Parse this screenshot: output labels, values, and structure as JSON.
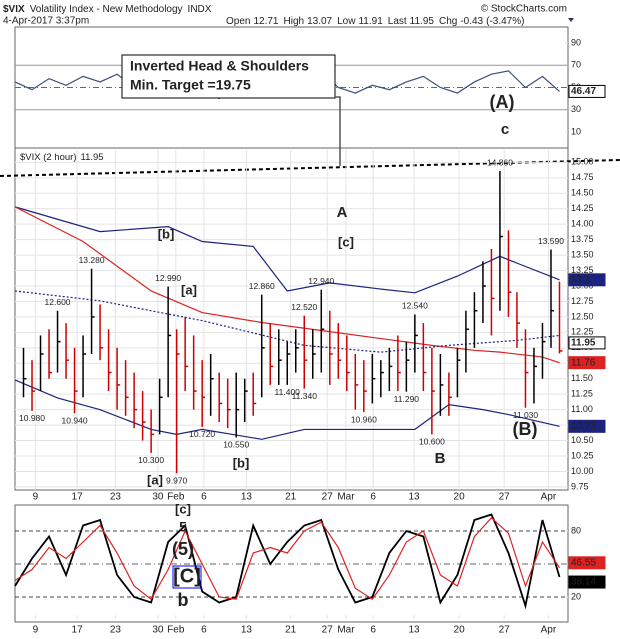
{
  "header": {
    "symbol": "$VIX",
    "name": "Volatility Index - New Methodology",
    "exchange": "INDX",
    "credit": "© StockCharts.com",
    "date": "4-Apr-2017 3:37pm",
    "quote": [
      {
        "label": "Open",
        "value": 12.71
      },
      {
        "label": "High",
        "value": 13.07
      },
      {
        "label": "Low",
        "value": 11.91
      },
      {
        "label": "Last",
        "value": 11.95
      },
      {
        "label": "Chg",
        "value": -0.43
      }
    ],
    "change_pct": -3.47,
    "change_pct_label": "(-3.47%)"
  },
  "annotations": {
    "callout": [
      "Inverted Head & Shoulders",
      "Min. Target =19.75"
    ],
    "wave_labels": [
      {
        "text": "(A)",
        "color": "#000000"
      },
      {
        "text": "c",
        "color": "#9900cc"
      },
      {
        "text": "A",
        "color": "#9900cc"
      },
      {
        "text": "[c]",
        "color": "#990000"
      },
      {
        "text": "[b]",
        "color": "#990000"
      },
      {
        "text": "[a]",
        "color": "#990000"
      },
      {
        "text": "[a]",
        "color": "#990000"
      },
      {
        "text": "[b]",
        "color": "#990000"
      },
      {
        "text": "B",
        "color": "#9900cc"
      },
      {
        "text": "(B)",
        "color": "#000000"
      },
      {
        "text": "[c]",
        "color": "#990000"
      },
      {
        "text": "5",
        "color": "#9900cc"
      },
      {
        "text": "(5)",
        "color": "#000000"
      },
      {
        "text": "[C]",
        "color": "#0000ff"
      },
      {
        "text": "b",
        "color": "#ff0000"
      }
    ]
  },
  "chart_data": [
    {
      "type": "line",
      "xlim": [
        0,
        65
      ],
      "ylim": [
        0,
        100
      ],
      "yticks": [
        10,
        30,
        50,
        70,
        90
      ],
      "reference_lines": [
        30,
        70
      ],
      "mid_line": 50,
      "series": [
        {
          "color": "#3d4f7c",
          "end_label": true,
          "x": [
            0,
            2,
            4,
            6,
            8,
            10,
            12,
            14,
            16,
            18,
            20,
            22,
            24,
            26,
            28,
            30,
            32,
            34,
            36,
            38,
            40,
            42,
            44,
            46,
            48,
            50,
            52,
            54,
            56,
            58,
            60,
            62,
            64
          ],
          "values": [
            55,
            48,
            58,
            52,
            60,
            55,
            62,
            50,
            45,
            42,
            58,
            48,
            40,
            52,
            60,
            55,
            62,
            58,
            65,
            50,
            45,
            52,
            48,
            55,
            60,
            50,
            45,
            55,
            62,
            65,
            50,
            60,
            46.47
          ]
        }
      ]
    },
    {
      "type": "ohlc",
      "legend_name": "$VIX (2 hour)",
      "legend_value": 11.95,
      "grid": true,
      "up_color": "#000000",
      "down_color": "#cc0000",
      "end_label": true,
      "xlim": [
        0,
        65
      ],
      "ylim": [
        9.7,
        15.2
      ],
      "xticks": [
        {
          "value": 2.4,
          "label": "9"
        },
        {
          "value": 7.3,
          "label": "17"
        },
        {
          "value": 11.8,
          "label": "23"
        },
        {
          "value": 16.8,
          "label": "30"
        },
        {
          "value": 18.9,
          "label": "Feb"
        },
        {
          "value": 22.2,
          "label": "6"
        },
        {
          "value": 27.2,
          "label": "13"
        },
        {
          "value": 32.4,
          "label": "21"
        },
        {
          "value": 36.7,
          "label": "27"
        },
        {
          "value": 38.9,
          "label": "Mar"
        },
        {
          "value": 42.1,
          "label": "6"
        },
        {
          "value": 46.9,
          "label": "13"
        },
        {
          "value": 52.2,
          "label": "20"
        },
        {
          "value": 57.5,
          "label": "27"
        },
        {
          "value": 62.7,
          "label": "Apr"
        }
      ],
      "yticks": [
        9.75,
        {
          "value": 10,
          "label": "10.00"
        },
        10.25,
        {
          "value": 10.5,
          "label": "10.50"
        },
        10.75,
        {
          "value": 11,
          "label": "11.00"
        },
        11.25,
        {
          "value": 11.5,
          "label": "11.50"
        },
        11.75,
        {
          "value": 12,
          "label": "12.00"
        },
        12.25,
        {
          "value": 12.5,
          "label": "12.50"
        },
        12.75,
        {
          "value": 13,
          "label": "13.00"
        },
        13.25,
        {
          "value": 13.5,
          "label": "13.50"
        },
        13.75,
        {
          "value": 14,
          "label": "14.00"
        },
        14.25,
        {
          "value": 14.5,
          "label": "14.50"
        },
        14.75,
        {
          "value": 15,
          "label": "15.00"
        }
      ],
      "x": [
        1,
        2,
        3,
        4,
        5,
        6,
        7,
        8,
        9,
        10,
        11,
        12,
        13,
        14,
        15,
        16,
        17,
        18,
        19,
        20,
        21,
        22,
        23,
        24,
        25,
        26,
        27,
        28,
        29,
        30,
        31,
        32,
        33,
        34,
        35,
        36,
        37,
        38,
        39,
        40,
        41,
        42,
        43,
        44,
        45,
        46,
        47,
        48,
        49,
        50,
        51,
        52,
        53,
        54,
        55,
        56,
        57,
        58,
        59,
        60,
        61,
        62,
        63,
        64
      ],
      "high": [
        12.0,
        11.8,
        12.2,
        12.3,
        12.6,
        12.4,
        12.0,
        12.2,
        13.28,
        12.7,
        12.3,
        12.0,
        11.8,
        11.6,
        11.3,
        11.0,
        11.5,
        12.99,
        12.3,
        12.5,
        12.2,
        11.8,
        11.9,
        11.6,
        11.5,
        11.6,
        11.5,
        11.6,
        12.86,
        12.4,
        12.3,
        12.1,
        12.3,
        12.52,
        12.3,
        12.94,
        12.6,
        12.4,
        12.2,
        11.9,
        11.8,
        11.9,
        11.8,
        12.0,
        12.2,
        12.1,
        12.54,
        12.4,
        12.0,
        11.9,
        11.6,
        12.0,
        12.6,
        12.9,
        13.4,
        13.6,
        14.86,
        13.9,
        12.9,
        12.3,
        12.0,
        12.4,
        13.59,
        13.07
      ],
      "low": [
        11.2,
        10.98,
        11.3,
        11.5,
        11.6,
        11.5,
        10.94,
        11.2,
        11.9,
        11.8,
        11.3,
        11.0,
        10.9,
        10.7,
        10.5,
        10.3,
        10.6,
        11.2,
        9.97,
        11.3,
        11.0,
        10.72,
        10.9,
        10.8,
        10.7,
        10.55,
        10.8,
        10.9,
        11.2,
        11.4,
        11.4,
        11.4,
        11.6,
        11.34,
        11.5,
        11.6,
        11.4,
        11.5,
        11.3,
        11.0,
        10.96,
        11.1,
        11.2,
        11.3,
        11.3,
        11.29,
        11.6,
        11.3,
        10.6,
        10.9,
        10.9,
        11.2,
        11.6,
        12.0,
        12.4,
        12.2,
        12.6,
        12.5,
        12.0,
        11.03,
        11.1,
        11.5,
        12.0,
        11.91
      ],
      "close": [
        11.5,
        11.3,
        11.9,
        11.6,
        12.1,
        11.8,
        11.3,
        11.9,
        12.5,
        12.0,
        11.6,
        11.4,
        11.2,
        11.0,
        10.8,
        10.6,
        11.2,
        12.2,
        11.9,
        11.7,
        11.3,
        11.2,
        11.5,
        11.1,
        11.0,
        11.0,
        11.3,
        11.1,
        12.0,
        11.7,
        11.8,
        11.9,
        12.0,
        11.8,
        11.9,
        12.3,
        11.9,
        11.8,
        11.6,
        11.4,
        11.3,
        11.5,
        11.6,
        11.7,
        11.6,
        11.8,
        12.2,
        11.6,
        11.3,
        11.4,
        11.2,
        11.8,
        12.3,
        12.6,
        13.0,
        12.8,
        13.8,
        12.9,
        12.4,
        11.6,
        11.7,
        12.1,
        12.6,
        11.95
      ],
      "overlays": [
        {
          "color": "#1a237e",
          "dash": false,
          "end_label": true,
          "x": [
            0,
            10,
            18,
            22,
            28,
            32,
            37,
            43,
            47,
            52,
            57,
            59,
            64
          ],
          "values": [
            14.28,
            13.88,
            13.96,
            13.72,
            13.64,
            12.92,
            13.05,
            12.95,
            12.89,
            13.16,
            13.48,
            13.37,
            13.1
          ]
        },
        {
          "color": "#1a237e",
          "dash": false,
          "end_label": true,
          "x": [
            0,
            5,
            10,
            16,
            19,
            22,
            29,
            34,
            39,
            47,
            51,
            55,
            58,
            64
          ],
          "values": [
            11.48,
            11.19,
            11.0,
            10.68,
            10.6,
            10.68,
            10.52,
            10.68,
            10.68,
            10.68,
            11.08,
            11.0,
            10.92,
            10.73
          ]
        },
        {
          "color": "#dd2222",
          "dash": false,
          "end_label": true,
          "x": [
            0,
            8,
            16,
            22,
            29,
            36,
            43,
            49,
            54,
            57,
            62,
            64
          ],
          "values": [
            14.28,
            13.72,
            12.92,
            12.57,
            12.41,
            12.28,
            12.15,
            12.04,
            11.96,
            11.93,
            11.85,
            11.76
          ]
        },
        {
          "color": "#1a237e",
          "dash": true,
          "end_label": false,
          "x": [
            0,
            10,
            22,
            34,
            43,
            51,
            59,
            64
          ],
          "values": [
            12.92,
            12.76,
            12.44,
            12.04,
            11.93,
            12.04,
            12.12,
            12.2
          ]
        }
      ],
      "price_labels": [
        {
          "x": 2,
          "value": 10.98,
          "label": "10.980"
        },
        {
          "x": 5,
          "value": 12.6,
          "label": "12.600"
        },
        {
          "x": 7,
          "value": 10.94,
          "label": "10.940"
        },
        {
          "x": 9,
          "value": 13.28,
          "label": "13.280"
        },
        {
          "x": 16,
          "value": 10.3,
          "label": "10.300"
        },
        {
          "x": 18,
          "value": 12.99,
          "label": "12.990"
        },
        {
          "x": 19,
          "value": 9.97,
          "label": "9.970"
        },
        {
          "x": 22,
          "value": 10.72,
          "label": "10.720"
        },
        {
          "x": 26,
          "value": 10.55,
          "label": "10.550"
        },
        {
          "x": 29,
          "value": 12.86,
          "label": "12.860"
        },
        {
          "x": 32,
          "value": 11.4,
          "label": "11.400"
        },
        {
          "x": 34,
          "value": 12.52,
          "label": "12.520"
        },
        {
          "x": 34,
          "value": 11.34,
          "label": "11.340"
        },
        {
          "x": 36,
          "value": 12.94,
          "label": "12.940"
        },
        {
          "x": 41,
          "value": 10.96,
          "label": "10.960"
        },
        {
          "x": 46,
          "value": 11.29,
          "label": "11.290"
        },
        {
          "x": 47,
          "value": 12.54,
          "label": "12.540"
        },
        {
          "x": 49,
          "value": 10.6,
          "label": "10.600"
        },
        {
          "x": 57,
          "value": 14.86,
          "label": "14.860"
        },
        {
          "x": 60,
          "value": 11.03,
          "label": "11.030"
        },
        {
          "x": 63,
          "value": 13.59,
          "label": "13.590"
        }
      ]
    },
    {
      "type": "line",
      "xlim": [
        0,
        65
      ],
      "ylim": [
        0,
        100
      ],
      "yticks": [
        20,
        50,
        80
      ],
      "reference_lines": [
        20,
        80
      ],
      "mid_line": 50,
      "xticks": [
        {
          "value": 2.4,
          "label": "9"
        },
        {
          "value": 7.3,
          "label": "17"
        },
        {
          "value": 11.8,
          "label": "23"
        },
        {
          "value": 16.8,
          "label": "30"
        },
        {
          "value": 18.9,
          "label": "Feb"
        },
        {
          "value": 22.2,
          "label": "6"
        },
        {
          "value": 27.2,
          "label": "13"
        },
        {
          "value": 32.4,
          "label": "21"
        },
        {
          "value": 36.7,
          "label": "27"
        },
        {
          "value": 38.9,
          "label": "Mar"
        },
        {
          "value": 42.1,
          "label": "6"
        },
        {
          "value": 46.9,
          "label": "13"
        },
        {
          "value": 52.2,
          "label": "20"
        },
        {
          "value": 57.5,
          "label": "27"
        },
        {
          "value": 62.7,
          "label": "Apr"
        }
      ],
      "series": [
        {
          "color": "#000000",
          "end_label": true,
          "x": [
            0,
            2,
            4,
            6,
            8,
            10,
            12,
            14,
            16,
            18,
            20,
            22,
            24,
            26,
            28,
            30,
            32,
            34,
            36,
            38,
            40,
            42,
            44,
            46,
            48,
            50,
            52,
            54,
            56,
            58,
            60,
            62,
            64
          ],
          "values": [
            30,
            55,
            75,
            40,
            85,
            90,
            40,
            20,
            15,
            70,
            85,
            25,
            15,
            20,
            85,
            50,
            70,
            85,
            90,
            45,
            15,
            20,
            60,
            80,
            75,
            15,
            40,
            90,
            95,
            60,
            12,
            90,
            38.14
          ]
        },
        {
          "color": "#dd2222",
          "end_label": true,
          "x": [
            0,
            2,
            4,
            6,
            8,
            10,
            12,
            14,
            16,
            18,
            20,
            22,
            24,
            26,
            28,
            30,
            32,
            34,
            36,
            38,
            40,
            42,
            44,
            46,
            48,
            50,
            52,
            54,
            56,
            58,
            60,
            62,
            64
          ],
          "values": [
            35,
            45,
            65,
            55,
            70,
            85,
            60,
            30,
            18,
            45,
            80,
            50,
            20,
            18,
            60,
            65,
            60,
            80,
            88,
            65,
            28,
            18,
            40,
            70,
            80,
            40,
            30,
            75,
            92,
            78,
            30,
            70,
            46.55
          ]
        }
      ]
    }
  ]
}
